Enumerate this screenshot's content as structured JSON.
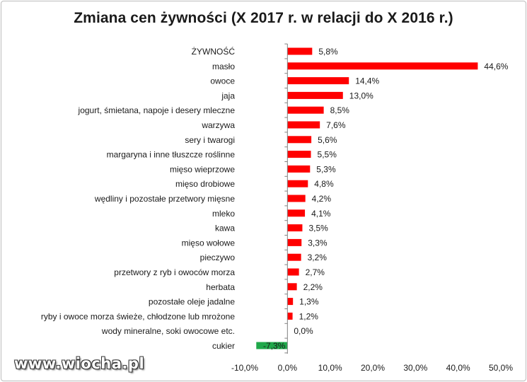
{
  "chart_data": {
    "type": "bar",
    "orientation": "horizontal",
    "title": "Zmiana cen żywności  (X 2017 r. w relacji do X 2016 r.)",
    "xlabel": "",
    "ylabel": "",
    "xlim": [
      -10,
      50
    ],
    "x_ticks": [
      "-10,0%",
      "0,0%",
      "10,0%",
      "20,0%",
      "30,0%",
      "40,0%",
      "50,0%"
    ],
    "grid": false,
    "legend": "none",
    "colors": {
      "positive": "#ff0000",
      "negative": "#1fa84a"
    },
    "categories": [
      "ŻYWNOŚĆ",
      "masło",
      "owoce",
      "jaja",
      "jogurt, śmietana,  napoje i desery mleczne",
      "warzywa",
      "sery i twarogi",
      "margaryna i  inne tłuszcze roślinne",
      "mięso wieprzowe",
      "mięso drobiowe",
      "wędliny i pozostałe  przetwory mięsne",
      "mleko",
      "kawa",
      "mięso wołowe",
      "pieczywo",
      "przetwory z ryb i owoców morza",
      "herbata",
      "pozostałe oleje jadalne",
      "ryby i owoce morza świeże, chłodzone lub mrożone",
      "wody mineralne, soki owocowe etc.",
      "cukier"
    ],
    "values": [
      5.8,
      44.6,
      14.4,
      13.0,
      8.5,
      7.6,
      5.6,
      5.5,
      5.3,
      4.8,
      4.2,
      4.1,
      3.5,
      3.3,
      3.2,
      2.7,
      2.2,
      1.3,
      1.2,
      0.0,
      -7.3
    ],
    "value_labels": [
      "5,8%",
      "44,6%",
      "14,4%",
      "13,0%",
      "8,5%",
      "7,6%",
      "5,6%",
      "5,5%",
      "5,3%",
      "4,8%",
      "4,2%",
      "4,1%",
      "3,5%",
      "3,3%",
      "3,2%",
      "2,7%",
      "2,2%",
      "1,3%",
      "1,2%",
      "0,0%",
      "-7,3%"
    ]
  },
  "watermark": "www.wiocha.pl"
}
